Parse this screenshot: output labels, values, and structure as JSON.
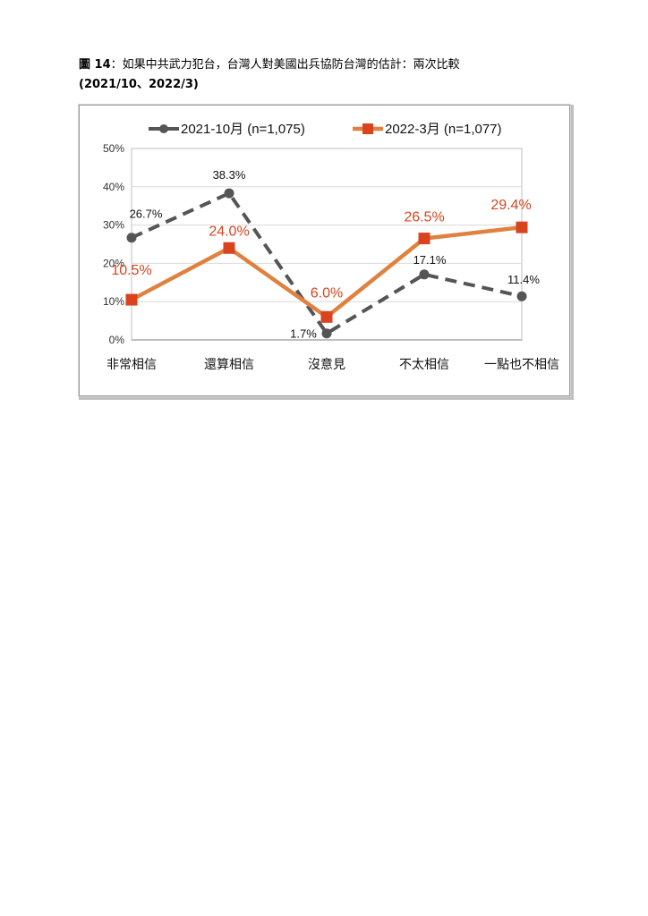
{
  "caption": {
    "figure_no": "圖 14",
    "title_text": "：如果中共武力犯台，台灣人對美國出兵協防台灣的估計：兩次比較",
    "subtitle": "(2021/10、2022/3)"
  },
  "chart_data": {
    "type": "line",
    "categories": [
      "非常相信",
      "還算相信",
      "沒意見",
      "不太相信",
      "一點也不相信"
    ],
    "ylim": [
      0,
      50
    ],
    "yticks": [
      "0%",
      "10%",
      "20%",
      "30%",
      "40%",
      "50%"
    ],
    "grid": "horizontal",
    "legend_position": "top",
    "series": [
      {
        "name": "2021-10月  (n=1,075)",
        "values": [
          26.7,
          38.3,
          1.7,
          17.1,
          11.4
        ],
        "labels": [
          "26.7%",
          "38.3%",
          "1.7%",
          "17.1%",
          "11.4%"
        ],
        "color": "#555555",
        "style": "dashed",
        "marker": "circle"
      },
      {
        "name": "2022-3月  (n=1,077)",
        "values": [
          10.5,
          24.0,
          6.0,
          26.5,
          29.4
        ],
        "labels": [
          "10.5%",
          "24.0%",
          "6.0%",
          "26.5%",
          "29.4%"
        ],
        "color": "#e0823f",
        "marker_color": "#d9441e",
        "style": "solid",
        "marker": "square"
      }
    ]
  }
}
